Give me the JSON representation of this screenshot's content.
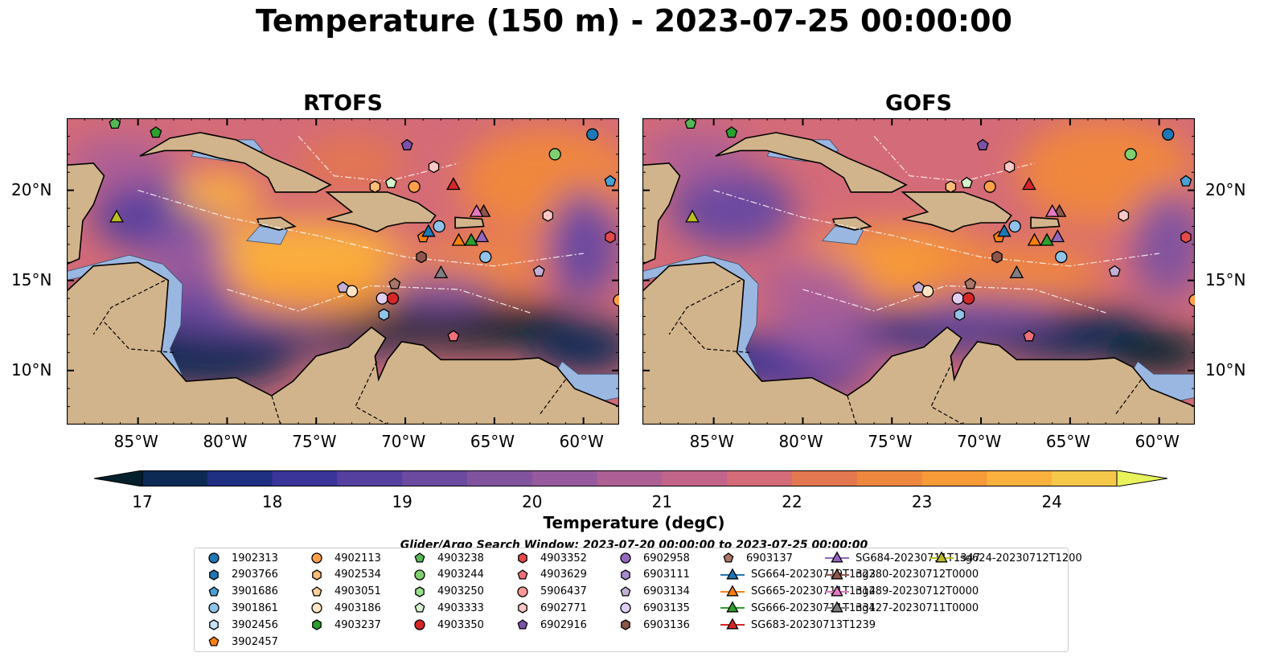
{
  "title": "Temperature (150 m) - 2023-07-25 00:00:00",
  "panels": [
    {
      "title": "RTOFS",
      "model": "rtofs"
    },
    {
      "title": "GOFS",
      "model": "gofs"
    }
  ],
  "axes": {
    "lon_ticks": [
      "85°W",
      "80°W",
      "75°W",
      "70°W",
      "65°W",
      "60°W"
    ],
    "lat_ticks": [
      "20°N",
      "15°N",
      "10°N"
    ],
    "lon_range": [
      -89,
      -58
    ],
    "lat_range": [
      7,
      24
    ]
  },
  "colorbar": {
    "label": "Temperature (degC)",
    "ticks": [
      "17",
      "18",
      "19",
      "20",
      "21",
      "22",
      "23",
      "24"
    ],
    "range": [
      17,
      24.5
    ],
    "extend": "both",
    "colormap": "thermal"
  },
  "search_window": "Glider/Argo Search Window: 2023-07-20 00:00:00 to 2023-07-25 00:00:00",
  "colors": {
    "land": "#d2b48c",
    "shelf": "#9ab7e2",
    "c_blue": "#1f77b4",
    "c_orange": "#ff7f0e",
    "c_green": "#2ca02c",
    "c_red": "#d62728",
    "c_purple": "#9467bd",
    "c_brown": "#8c564b",
    "c_pink": "#e377c2",
    "c_gray": "#7f7f7f",
    "c_olive": "#bcbd22"
  },
  "legend": [
    {
      "label": "1902313",
      "marker": "circle",
      "color": "#1f77b4"
    },
    {
      "label": "2903766",
      "marker": "hexagon",
      "color": "#1f77b4"
    },
    {
      "label": "3901686",
      "marker": "pentagon",
      "color": "#4a9fd6"
    },
    {
      "label": "3901861",
      "marker": "circle",
      "color": "#8fc3ea"
    },
    {
      "label": "3902456",
      "marker": "hexagon",
      "color": "#c6e2f5"
    },
    {
      "label": "3902457",
      "marker": "pentagon",
      "color": "#ff7f0e"
    },
    {
      "label": "4902113",
      "marker": "circle",
      "color": "#ff9f4a"
    },
    {
      "label": "4902534",
      "marker": "hexagon",
      "color": "#ffbb78"
    },
    {
      "label": "4903051",
      "marker": "pentagon",
      "color": "#ffcf9e"
    },
    {
      "label": "4903186",
      "marker": "circle",
      "color": "#ffe4c4"
    },
    {
      "label": "4903237",
      "marker": "hexagon",
      "color": "#2ca02c"
    },
    {
      "label": "4903238",
      "marker": "pentagon",
      "color": "#55b855"
    },
    {
      "label": "4903244",
      "marker": "circle",
      "color": "#7fcf6f"
    },
    {
      "label": "4903250",
      "marker": "hexagon",
      "color": "#98df8a"
    },
    {
      "label": "4903333",
      "marker": "pentagon",
      "color": "#d4f2cc"
    },
    {
      "label": "4903350",
      "marker": "circle",
      "color": "#d62728"
    },
    {
      "label": "4903352",
      "marker": "hexagon",
      "color": "#e44a4a"
    },
    {
      "label": "4903629",
      "marker": "pentagon",
      "color": "#f0707a"
    },
    {
      "label": "5906437",
      "marker": "circle",
      "color": "#ff9896"
    },
    {
      "label": "6902771",
      "marker": "hexagon",
      "color": "#ffc8c6"
    },
    {
      "label": "6902916",
      "marker": "pentagon",
      "color": "#7b52ab"
    },
    {
      "label": "6902958",
      "marker": "circle",
      "color": "#9467bd"
    },
    {
      "label": "6903111",
      "marker": "hexagon",
      "color": "#a98ad0"
    },
    {
      "label": "6903134",
      "marker": "pentagon",
      "color": "#c5b0d5"
    },
    {
      "label": "6903135",
      "marker": "circle",
      "color": "#e2cdf0"
    },
    {
      "label": "6903136",
      "marker": "hexagon",
      "color": "#8c564b"
    },
    {
      "label": "6903137",
      "marker": "pentagon",
      "color": "#a97568"
    },
    {
      "label": "SG664-20230719T1323",
      "marker": "triangle",
      "color": "#1f77b4"
    },
    {
      "label": "SG665-20230711T1314",
      "marker": "triangle",
      "color": "#ff7f0e"
    },
    {
      "label": "SG666-20230711T1331",
      "marker": "triangle",
      "color": "#2ca02c"
    },
    {
      "label": "SG683-20230713T1239",
      "marker": "triangle",
      "color": "#d62728"
    },
    {
      "label": "SG684-20230711T1347",
      "marker": "triangle",
      "color": "#9467bd"
    },
    {
      "label": "ng280-20230712T0000",
      "marker": "triangle",
      "color": "#8c564b"
    },
    {
      "label": "ng289-20230712T0000",
      "marker": "triangle",
      "color": "#e377c2"
    },
    {
      "label": "ng427-20230711T0000",
      "marker": "triangle",
      "color": "#7f7f7f"
    },
    {
      "label": "sg624-20230712T1200",
      "marker": "triangle",
      "color": "#bcbd22"
    }
  ],
  "platforms": [
    {
      "lon": -59.5,
      "lat": 23.1,
      "marker": "circle",
      "color": "#1f77b4"
    },
    {
      "lon": -58.5,
      "lat": 20.5,
      "marker": "pentagon",
      "color": "#4a9fd6"
    },
    {
      "lon": -61.6,
      "lat": 22.0,
      "marker": "circle",
      "color": "#7fcf6f"
    },
    {
      "lon": -69.9,
      "lat": 22.5,
      "marker": "pentagon",
      "color": "#7b52ab"
    },
    {
      "lon": -68.4,
      "lat": 21.3,
      "marker": "hexagon",
      "color": "#ffc8c6"
    },
    {
      "lon": -84.0,
      "lat": 23.2,
      "marker": "pentagon",
      "color": "#2ca02c"
    },
    {
      "lon": -86.3,
      "lat": 23.7,
      "marker": "pentagon",
      "color": "#55b855"
    },
    {
      "lon": -71.7,
      "lat": 20.2,
      "marker": "hexagon",
      "color": "#ffbb78"
    },
    {
      "lon": -70.8,
      "lat": 20.4,
      "marker": "pentagon",
      "color": "#d4f2cc"
    },
    {
      "lon": -69.5,
      "lat": 20.2,
      "marker": "circle",
      "color": "#ff9f4a"
    },
    {
      "lon": -68.1,
      "lat": 18.0,
      "marker": "circle",
      "color": "#8fc3ea"
    },
    {
      "lon": -69.0,
      "lat": 17.4,
      "marker": "pentagon",
      "color": "#ff7f0e"
    },
    {
      "lon": -69.1,
      "lat": 16.3,
      "marker": "hexagon",
      "color": "#8c564b"
    },
    {
      "lon": -65.5,
      "lat": 16.3,
      "marker": "circle",
      "color": "#8fc3ea"
    },
    {
      "lon": -62.0,
      "lat": 18.6,
      "marker": "hexagon",
      "color": "#ffc8c6"
    },
    {
      "lon": -58.5,
      "lat": 17.4,
      "marker": "hexagon",
      "color": "#e44a4a"
    },
    {
      "lon": -62.5,
      "lat": 15.5,
      "marker": "pentagon",
      "color": "#c5b0d5"
    },
    {
      "lon": -70.6,
      "lat": 14.8,
      "marker": "pentagon",
      "color": "#a97568"
    },
    {
      "lon": -73.0,
      "lat": 14.4,
      "marker": "circle",
      "color": "#ffe4c4"
    },
    {
      "lon": -73.5,
      "lat": 14.6,
      "marker": "pentagon",
      "color": "#c5b0d5"
    },
    {
      "lon": -71.3,
      "lat": 14.0,
      "marker": "circle",
      "color": "#e2cdf0"
    },
    {
      "lon": -70.7,
      "lat": 14.0,
      "marker": "circle",
      "color": "#d62728"
    },
    {
      "lon": -71.2,
      "lat": 13.1,
      "marker": "hexagon",
      "color": "#8fc3ea"
    },
    {
      "lon": -67.3,
      "lat": 11.9,
      "marker": "pentagon",
      "color": "#f0707a"
    },
    {
      "lon": -58.0,
      "lat": 13.9,
      "marker": "circle",
      "color": "#ff9f4a"
    },
    {
      "lon": -67.3,
      "lat": 20.3,
      "marker": "triangle",
      "color": "#d62728"
    },
    {
      "lon": -68.7,
      "lat": 17.7,
      "marker": "triangle",
      "color": "#1f77b4"
    },
    {
      "lon": -67.0,
      "lat": 17.2,
      "marker": "triangle",
      "color": "#ff7f0e"
    },
    {
      "lon": -66.3,
      "lat": 17.2,
      "marker": "triangle",
      "color": "#2ca02c"
    },
    {
      "lon": -65.7,
      "lat": 17.4,
      "marker": "triangle",
      "color": "#9467bd"
    },
    {
      "lon": -65.6,
      "lat": 18.8,
      "marker": "triangle",
      "color": "#8c564b"
    },
    {
      "lon": -66.0,
      "lat": 18.8,
      "marker": "triangle",
      "color": "#e377c2"
    },
    {
      "lon": -68.0,
      "lat": 15.4,
      "marker": "triangle",
      "color": "#7f7f7f"
    },
    {
      "lon": -86.2,
      "lat": 18.5,
      "marker": "triangle",
      "color": "#bcbd22"
    }
  ]
}
